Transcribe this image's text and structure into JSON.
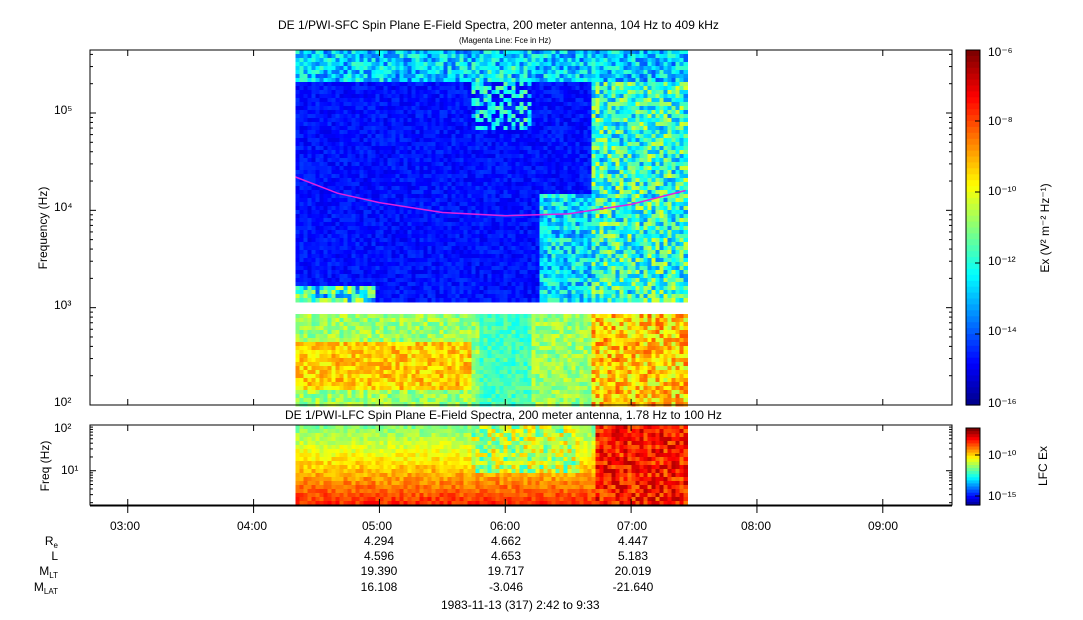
{
  "top_panel": {
    "title": "DE 1/PWI-SFC  Spin Plane E-Field Spectra, 200 meter antenna, 104 Hz to 409 kHz",
    "subtitle": "(Magenta Line: Fce in Hz)",
    "ylabel": "Frequency (Hz)",
    "ytick_labels": [
      "10²",
      "10³",
      "10⁴",
      "10⁵"
    ],
    "colorbar_label": "Ex (V² m⁻² Hz⁻¹)",
    "colorbar_tick_labels": [
      "10⁻⁶",
      "10⁻⁸",
      "10⁻¹⁰",
      "10⁻¹²",
      "10⁻¹⁴",
      "10⁻¹⁶"
    ]
  },
  "bottom_panel": {
    "title": "DE 1/PWI-LFC  Spin Plane E-Field Spectra, 200 meter antenna, 1.78 Hz to 100 Hz",
    "ylabel": "Freq (Hz)",
    "ytick_labels": [
      "10¹",
      "10²"
    ],
    "colorbar_label": "LFC Ex",
    "colorbar_tick_labels": [
      "10⁻¹⁰",
      "10⁻¹⁵"
    ]
  },
  "xaxis": {
    "tick_labels": [
      "03:00",
      "04:00",
      "05:00",
      "06:00",
      "07:00",
      "08:00",
      "09:00"
    ]
  },
  "ephemeris": {
    "rows": [
      {
        "label": "R",
        "sub": "e",
        "values": [
          "4.294",
          "4.662",
          "4.447"
        ]
      },
      {
        "label": "L",
        "sub": "",
        "values": [
          "4.596",
          "4.653",
          "5.183"
        ]
      },
      {
        "label": "M",
        "sub": "LT",
        "values": [
          "19.390",
          "19.717",
          "20.019"
        ]
      },
      {
        "label": "M",
        "sub": "LAT",
        "values": [
          "16.108",
          "-3.046",
          "-21.640"
        ]
      }
    ],
    "date_range": "1983-11-13 (317) 2:42 to 9:33"
  },
  "chart_data": [
    {
      "type": "heatmap",
      "title": "DE 1/PWI-SFC  Spin Plane E-Field Spectra, 200 meter antenna, 104 Hz to 409 kHz",
      "xlabel": "",
      "ylabel": "Frequency (Hz)",
      "x_range": [
        "02:42",
        "09:33"
      ],
      "data_time_range": [
        "04:20",
        "07:26"
      ],
      "y_range_hz": [
        100,
        409000
      ],
      "y_scale": "log",
      "colorbar_range": [
        1e-16,
        1e-06
      ],
      "colorbar_scale": "log",
      "colorbar_label": "Ex (V² m⁻² Hz⁻¹)",
      "overlay_line": {
        "name": "Fce",
        "color": "#e020e0",
        "points": [
          [
            "04:20",
            22000
          ],
          [
            "04:40",
            15000
          ],
          [
            "05:00",
            12000
          ],
          [
            "05:30",
            9500
          ],
          [
            "06:00",
            8800
          ],
          [
            "06:30",
            9200
          ],
          [
            "07:00",
            11500
          ],
          [
            "07:26",
            16000
          ]
        ]
      }
    },
    {
      "type": "heatmap",
      "title": "DE 1/PWI-LFC  Spin Plane E-Field Spectra, 200 meter antenna, 1.78 Hz to 100 Hz",
      "xlabel": "",
      "ylabel": "Freq (Hz)",
      "x_range": [
        "02:42",
        "09:33"
      ],
      "data_time_range": [
        "04:20",
        "07:26"
      ],
      "y_range_hz": [
        1.78,
        100
      ],
      "y_scale": "log",
      "colorbar_range": [
        1e-16,
        1e-08
      ],
      "colorbar_scale": "log",
      "colorbar_label": "LFC Ex"
    }
  ],
  "colors": {
    "fce_line": "#e020e0"
  }
}
